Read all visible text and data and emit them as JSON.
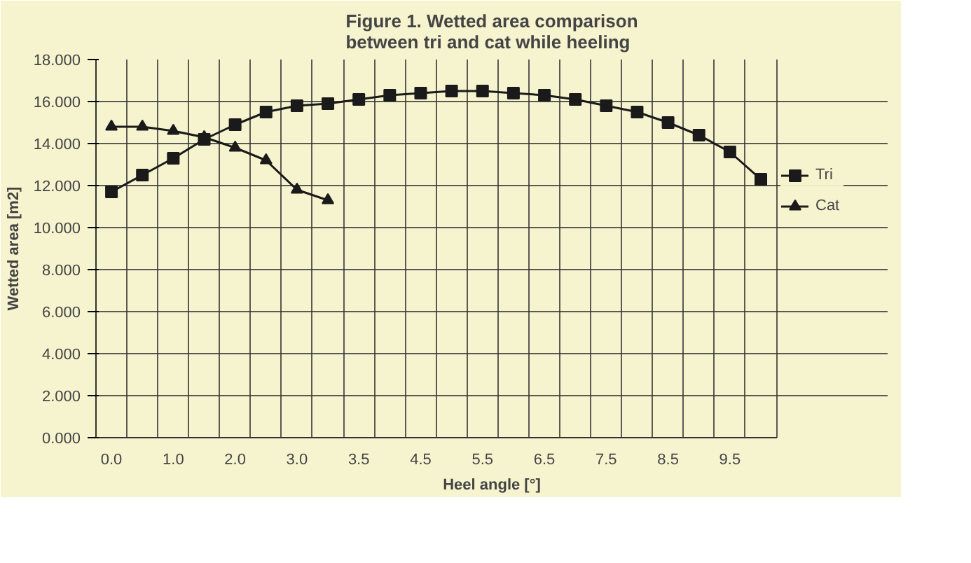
{
  "chart_data": {
    "type": "line",
    "title": "Figure 1. Wetted area comparison\nbetween tri and cat while heeling",
    "xlabel": "Heel angle [°]",
    "ylabel": "Wetted area [m2]",
    "categories": [
      "0.0",
      null,
      "1.0",
      null,
      "2.0",
      null,
      "3.0",
      null,
      "3.5",
      null,
      "4.5",
      null,
      "5.5",
      null,
      "6.5",
      null,
      "7.5",
      null,
      "8.5",
      null,
      "9.5",
      null
    ],
    "series": [
      {
        "name": "Tri",
        "color": "#1a1a1a",
        "marker": "square",
        "values": [
          11.7,
          12.5,
          13.3,
          14.2,
          14.9,
          15.5,
          15.8,
          15.9,
          16.1,
          16.3,
          16.4,
          16.5,
          16.5,
          16.4,
          16.3,
          16.1,
          15.8,
          15.5,
          15.0,
          14.4,
          13.6,
          12.3
        ]
      },
      {
        "name": "Cat",
        "color": "#1a1a1a",
        "marker": "triangle",
        "values": [
          14.8,
          14.8,
          14.6,
          14.3,
          13.8,
          13.2,
          11.8,
          11.3,
          null,
          null,
          null,
          null,
          null,
          null,
          null,
          null,
          null,
          null,
          null,
          null,
          null,
          null
        ]
      }
    ],
    "ylim": [
      0,
      18
    ],
    "yticks": [
      {
        "value": 0,
        "label": "0.000"
      },
      {
        "value": 2,
        "label": "2.000"
      },
      {
        "value": 4,
        "label": "4.000"
      },
      {
        "value": 6,
        "label": "6.000"
      },
      {
        "value": 8,
        "label": "8.000"
      },
      {
        "value": 10,
        "label": "10.000"
      },
      {
        "value": 12,
        "label": "12.000"
      },
      {
        "value": 14,
        "label": "14.000"
      },
      {
        "value": 16,
        "label": "16.000"
      },
      {
        "value": 18,
        "label": "18.000"
      }
    ],
    "grid": true,
    "legend": "right"
  }
}
